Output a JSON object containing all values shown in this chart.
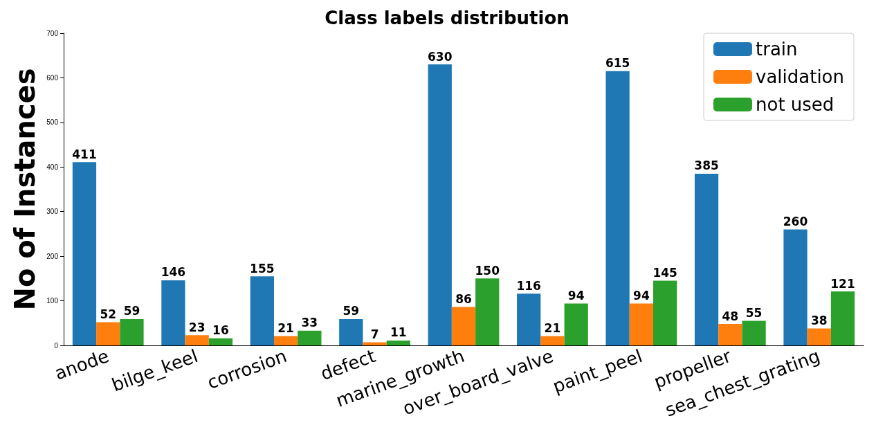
{
  "chart_data": {
    "type": "bar",
    "title": "Class labels distribution",
    "ylabel": "No of Instances",
    "categories": [
      "anode",
      "bilge_keel",
      "corrosion",
      "defect",
      "marine_growth",
      "over_board_valve",
      "paint_peel",
      "propeller",
      "sea_chest_grating"
    ],
    "series": [
      {
        "name": "train",
        "color": "#1f77b4",
        "values": [
          411,
          146,
          155,
          59,
          630,
          116,
          615,
          385,
          260
        ]
      },
      {
        "name": "validation",
        "color": "#ff7f0e",
        "values": [
          52,
          23,
          21,
          7,
          86,
          21,
          94,
          48,
          38
        ]
      },
      {
        "name": "not used",
        "color": "#2ca02c",
        "values": [
          59,
          16,
          33,
          11,
          150,
          94,
          145,
          55,
          121
        ]
      }
    ],
    "ylim": [
      0,
      700
    ],
    "yticks": [
      0,
      100,
      200,
      300,
      400,
      500,
      600,
      700
    ],
    "data_labels": true,
    "legend": "top right",
    "grid": false
  }
}
